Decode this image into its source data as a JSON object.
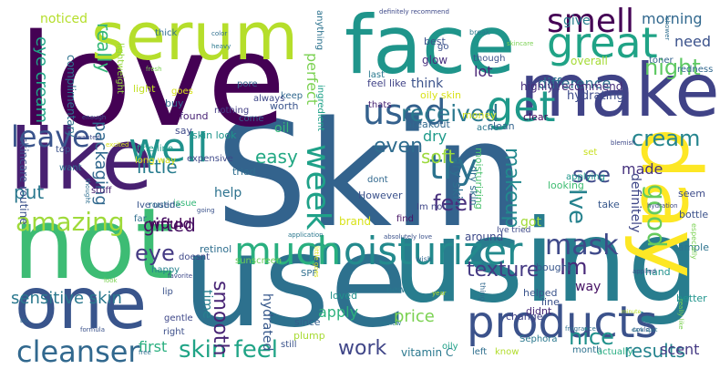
{
  "words": [
    {
      "text": "Skin",
      "color": "#33638d"
    },
    {
      "text": "use",
      "color": "#2d718e"
    },
    {
      "text": "love",
      "color": "#440154"
    },
    {
      "text": "using",
      "color": "#287d8e"
    },
    {
      "text": "face",
      "color": "#1f958b"
    },
    {
      "text": "not",
      "color": "#3dbc74"
    },
    {
      "text": "serum",
      "color": "#b5de2b"
    },
    {
      "text": "make",
      "color": "#404387"
    },
    {
      "text": "like",
      "color": "#482071"
    },
    {
      "text": "day",
      "color": "#fde725"
    },
    {
      "text": "one",
      "color": "#39558c"
    },
    {
      "text": "great",
      "color": "#20a386"
    },
    {
      "text": "products",
      "color": "#3b528b"
    },
    {
      "text": "moisturizer",
      "color": "#238a8d"
    },
    {
      "text": "much",
      "color": "#29af7f"
    },
    {
      "text": "get",
      "color": "#1f998a"
    },
    {
      "text": "used",
      "color": "#34618d"
    },
    {
      "text": "well",
      "color": "#20928c"
    },
    {
      "text": "smell",
      "color": "#440154"
    },
    {
      "text": "try",
      "color": "#2c738e"
    },
    {
      "text": "week",
      "color": "#1fa188"
    },
    {
      "text": "mask",
      "color": "#3e4989"
    },
    {
      "text": "cleanser",
      "color": "#31688e"
    },
    {
      "text": "leave",
      "color": "#3a548c"
    },
    {
      "text": "amazing",
      "color": "#9fda3a"
    },
    {
      "text": "good",
      "color": "#65cb5e"
    },
    {
      "text": "received",
      "color": "#2a788e"
    },
    {
      "text": "night",
      "color": "#5ec962"
    },
    {
      "text": "skin feel",
      "color": "#20a486"
    },
    {
      "text": "cream",
      "color": "#25858e"
    },
    {
      "text": "makeup",
      "color": "#23898e"
    },
    {
      "text": "feel",
      "color": "#472f7d"
    },
    {
      "text": "eye",
      "color": "#443a83"
    },
    {
      "text": "see",
      "color": "#3e4989"
    },
    {
      "text": "nice",
      "color": "#21918c"
    },
    {
      "text": "work",
      "color": "#404688"
    },
    {
      "text": "texture",
      "color": "#443983"
    },
    {
      "text": "Im",
      "color": "#482878"
    },
    {
      "text": "even",
      "color": "#2f6c8e"
    },
    {
      "text": "Ive",
      "color": "#26828e"
    },
    {
      "text": "smooth",
      "color": "#482475"
    },
    {
      "text": "little",
      "color": "#287c8e"
    },
    {
      "text": "results",
      "color": "#25848e"
    },
    {
      "text": "put",
      "color": "#2a788e"
    },
    {
      "text": "really",
      "color": "#35b779"
    },
    {
      "text": "easy",
      "color": "#22a884"
    },
    {
      "text": "gifted",
      "color": "#471063"
    },
    {
      "text": "would",
      "color": "#440154"
    },
    {
      "text": "price",
      "color": "#7ad151"
    },
    {
      "text": "apply",
      "color": "#2db27d"
    },
    {
      "text": "sensitive skin",
      "color": "#2a788e"
    },
    {
      "text": "eye cream",
      "color": "#20a486"
    },
    {
      "text": "packaging",
      "color": "#31688e"
    },
    {
      "text": "difference",
      "color": "#2d708e"
    },
    {
      "text": "morning",
      "color": "#31688e"
    },
    {
      "text": "need",
      "color": "#3b528b"
    },
    {
      "text": "made",
      "color": "#46327e"
    },
    {
      "text": "soft",
      "color": "#9bd93c"
    },
    {
      "text": "dry skin",
      "color": "#2e6e8e"
    },
    {
      "text": "definitely",
      "color": "#3f4788"
    },
    {
      "text": "first",
      "color": "#29af7f"
    },
    {
      "text": "scent",
      "color": "#443983"
    },
    {
      "text": "hydrated",
      "color": "#38598c"
    },
    {
      "text": "think",
      "color": "#3b528b"
    },
    {
      "text": "give",
      "color": "#277f8e"
    },
    {
      "text": "lot",
      "color": "#482576"
    },
    {
      "text": "help",
      "color": "#2c728e"
    },
    {
      "text": "time",
      "color": "#27808e"
    },
    {
      "text": "got",
      "color": "#a2da37"
    },
    {
      "text": "way",
      "color": "#471365"
    },
    {
      "text": "perfect",
      "color": "#7ad151"
    },
    {
      "text": "noticed",
      "color": "#b5de2b"
    },
    {
      "text": "skincare routine",
      "color": "#3b528b"
    },
    {
      "text": "hydrating",
      "color": "#3e4c8a"
    },
    {
      "text": "oily skin",
      "color": "#d8e219"
    },
    {
      "text": "dry",
      "color": "#1f9a8a"
    },
    {
      "text": "oil",
      "color": "#35b779"
    },
    {
      "text": "brand",
      "color": "#d8e219"
    },
    {
      "text": "moisturizing",
      "color": "#4ac16d"
    },
    {
      "text": "around",
      "color": "#3e4a89"
    },
    {
      "text": "dry skin2",
      "color": "#2e6e8e"
    },
    {
      "text": "highly recommend",
      "color": "#472c7a"
    },
    {
      "text": "overall",
      "color": "#a5db36"
    },
    {
      "text": "glow",
      "color": "#462f7e"
    },
    {
      "text": "best",
      "color": "#3b528b"
    },
    {
      "text": "though",
      "color": "#3b528b"
    },
    {
      "text": "last",
      "color": "#2a788e"
    },
    {
      "text": "toner",
      "color": "#33638d"
    },
    {
      "text": "redness",
      "color": "#31688e"
    },
    {
      "text": "complimentary",
      "color": "#2c728e"
    },
    {
      "text": "lightweight",
      "color": "#95d840"
    },
    {
      "text": "light",
      "color": "#c2df23"
    },
    {
      "text": "found",
      "color": "#482475"
    },
    {
      "text": "buy",
      "color": "#31688e"
    },
    {
      "text": "say",
      "color": "#3e4a89"
    },
    {
      "text": "skin look",
      "color": "#1f958b"
    },
    {
      "text": "fine line",
      "color": "#1e9c89"
    },
    {
      "text": "long way",
      "color": "#dde318"
    },
    {
      "text": "stuff",
      "color": "#482173"
    },
    {
      "text": "routine",
      "color": "#2c728e"
    },
    {
      "text": "far",
      "color": "#2e6e8e"
    },
    {
      "text": "issue",
      "color": "#35b779"
    },
    {
      "text": "Ive used",
      "color": "#39568c"
    },
    {
      "text": "gentle",
      "color": "#3f4889"
    },
    {
      "text": "right",
      "color": "#3c4f8a"
    },
    {
      "text": "happy",
      "color": "#26828e"
    },
    {
      "text": "doesnt",
      "color": "#3e4989"
    },
    {
      "text": "lip",
      "color": "#3b528b"
    },
    {
      "text": "sunscreen",
      "color": "#6ece58"
    },
    {
      "text": "SPF",
      "color": "#2e6e8e"
    },
    {
      "text": "loved",
      "color": "#21918c"
    },
    {
      "text": "since",
      "color": "#355f8d"
    },
    {
      "text": "plump",
      "color": "#a8db34"
    },
    {
      "text": "still",
      "color": "#3a538b"
    },
    {
      "text": "vitamin C",
      "color": "#2a788e"
    },
    {
      "text": "oily",
      "color": "#1fa187"
    },
    {
      "text": "left",
      "color": "#2e6f8e"
    },
    {
      "text": "know",
      "color": "#b2dd2d"
    },
    {
      "text": "month",
      "color": "#2d718e"
    },
    {
      "text": "actually",
      "color": "#26ad81"
    },
    {
      "text": "bought",
      "color": "#39568c"
    },
    {
      "text": "helped",
      "color": "#3a548c"
    },
    {
      "text": "didnt",
      "color": "#482979"
    },
    {
      "text": "line",
      "color": "#3b518b"
    },
    {
      "text": "change",
      "color": "#404387"
    },
    {
      "text": "new",
      "color": "#2a788e"
    },
    {
      "text": "hand",
      "color": "#21918c"
    },
    {
      "text": "better",
      "color": "#1f948c"
    },
    {
      "text": "sample",
      "color": "#2c738e"
    },
    {
      "text": "bottle",
      "color": "#3b528b"
    },
    {
      "text": "seem",
      "color": "#3e4c8a"
    },
    {
      "text": "take",
      "color": "#38588c"
    },
    {
      "text": "looking",
      "color": "#40bd72"
    },
    {
      "text": "applying",
      "color": "#1f968b"
    },
    {
      "text": "set",
      "color": "#c8e020"
    },
    {
      "text": "acne",
      "color": "#2a788e"
    },
    {
      "text": "clean",
      "color": "#33638d"
    },
    {
      "text": "clear",
      "color": "#46085c"
    },
    {
      "text": "money",
      "color": "#d0e11c"
    },
    {
      "text": "breakout",
      "color": "#31688e"
    },
    {
      "text": "find",
      "color": "#471365"
    },
    {
      "text": "tried",
      "color": "#2e6e8e"
    },
    {
      "text": "expensive",
      "color": "#3e4989"
    },
    {
      "text": "worth",
      "color": "#3a548c"
    },
    {
      "text": "keep",
      "color": "#31688e"
    },
    {
      "text": "thats",
      "color": "#482374"
    },
    {
      "text": "come",
      "color": "#355f8d"
    },
    {
      "text": "nothing",
      "color": "#433e85"
    },
    {
      "text": "want",
      "color": "#2e6e8e"
    },
    {
      "text": "top",
      "color": "#3b528b"
    },
    {
      "text": "thick",
      "color": "#2e6e8e"
    },
    {
      "text": "anything",
      "color": "#2c728e"
    },
    {
      "text": "pore",
      "color": "#33638d"
    },
    {
      "text": "ingredient",
      "color": "#1fa188"
    },
    {
      "text": "always",
      "color": "#3e4989"
    },
    {
      "text": "Im not",
      "color": "#3f4788"
    },
    {
      "text": "However",
      "color": "#3b528b"
    },
    {
      "text": "dont",
      "color": "#31688e"
    },
    {
      "text": "retinol",
      "color": "#2e6e8e"
    },
    {
      "text": "feel like",
      "color": "#404387"
    },
    {
      "text": "go",
      "color": "#3b528b"
    },
    {
      "text": "goes",
      "color": "#d8e219"
    },
    {
      "text": "definitely recommend",
      "color": "#3e4989"
    },
    {
      "text": "wish",
      "color": "#31688e"
    },
    {
      "text": "absolutely love",
      "color": "#3b528b"
    },
    {
      "text": "especially",
      "color": "#7ad151"
    },
    {
      "text": "fragrance",
      "color": "#2e6e8e"
    },
    {
      "text": "could",
      "color": "#3b528b"
    },
    {
      "text": "really like",
      "color": "#7ad151"
    },
    {
      "text": "dark spot",
      "color": "#2a788e"
    },
    {
      "text": "minute",
      "color": "#b5de2b"
    },
    {
      "text": "Sephora",
      "color": "#2a788e"
    },
    {
      "text": "Ive tried",
      "color": "#3e4989"
    },
    {
      "text": "thing",
      "color": "#31688e"
    },
    {
      "text": "color",
      "color": "#2e6e8e"
    },
    {
      "text": "heavy",
      "color": "#2a788e"
    },
    {
      "text": "fresh",
      "color": "#7ad151"
    },
    {
      "text": "enough",
      "color": "#3b528b"
    },
    {
      "text": "wanted",
      "color": "#3e4989"
    },
    {
      "text": "excited",
      "color": "#d8e219"
    },
    {
      "text": "thought",
      "color": "#2e6e8e"
    },
    {
      "text": "going",
      "color": "#3b528b"
    },
    {
      "text": "little goes",
      "color": "#d8e219"
    },
    {
      "text": "application",
      "color": "#2a788e"
    },
    {
      "text": "hydration",
      "color": "#3e4989"
    },
    {
      "text": "bit",
      "color": "#31688e"
    },
    {
      "text": "formula",
      "color": "#3b528b"
    },
    {
      "text": "free",
      "color": "#2e6e8e"
    },
    {
      "text": "look",
      "color": "#7ad151"
    },
    {
      "text": "favorite",
      "color": "#3e4989"
    },
    {
      "text": "review",
      "color": "#2a788e"
    },
    {
      "text": "year",
      "color": "#b5de2b"
    },
    {
      "text": "applied",
      "color": "#3b528b"
    },
    {
      "text": "break",
      "color": "#2a788e"
    },
    {
      "text": "skincare",
      "color": "#7ad151"
    },
    {
      "text": "shower",
      "color": "#2e6e8e"
    },
    {
      "text": "blemish",
      "color": "#3e4989"
    }
  ]
}
